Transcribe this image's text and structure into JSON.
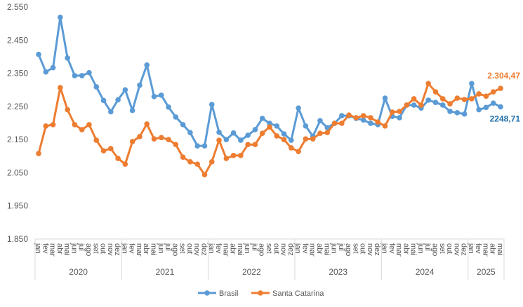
{
  "chart_data": {
    "type": "line",
    "title": "",
    "xlabel": "",
    "ylabel": "",
    "ylim": [
      1850,
      2550
    ],
    "yticks": [
      "1.850",
      "1.950",
      "2.050",
      "2.150",
      "2.250",
      "2.350",
      "2.450",
      "2.550"
    ],
    "ytick_values": [
      1850,
      1950,
      2050,
      2150,
      2250,
      2350,
      2450,
      2550
    ],
    "grid": false,
    "legend_position": "bottom",
    "months": [
      "jan",
      "fev",
      "mar",
      "abr",
      "mai",
      "jun",
      "jul",
      "ago",
      "set",
      "out",
      "nov",
      "dez"
    ],
    "years": [
      {
        "label": "2020",
        "months": 12
      },
      {
        "label": "2021",
        "months": 12
      },
      {
        "label": "2022",
        "months": 12
      },
      {
        "label": "2023",
        "months": 12
      },
      {
        "label": "2024",
        "months": 12
      },
      {
        "label": "2025",
        "months": 5
      }
    ],
    "series": [
      {
        "name": "Brasil",
        "color": "#5b9bd5",
        "end_label": "2248,71",
        "end_label_color": "#1f6ea8",
        "values": [
          2407,
          2354,
          2367,
          2519,
          2396,
          2343,
          2343,
          2352,
          2309,
          2268,
          2234,
          2270,
          2300,
          2238,
          2314,
          2375,
          2280,
          2284,
          2248,
          2218,
          2195,
          2171,
          2131,
          2131,
          2256,
          2172,
          2150,
          2170,
          2148,
          2163,
          2180,
          2214,
          2199,
          2191,
          2167,
          2148,
          2245,
          2191,
          2160,
          2207,
          2186,
          2199,
          2222,
          2222,
          2214,
          2209,
          2199,
          2195,
          2275,
          2220,
          2216,
          2254,
          2254,
          2245,
          2269,
          2262,
          2254,
          2235,
          2231,
          2227,
          2319,
          2240,
          2247,
          2260,
          2248.71
        ]
      },
      {
        "name": "Santa Catarina",
        "color": "#ed7d31",
        "end_label": "2.304,47",
        "end_label_color": "#ed7d31",
        "values": [
          2108,
          2191,
          2195,
          2307,
          2240,
          2195,
          2180,
          2195,
          2148,
          2116,
          2123,
          2093,
          2076,
          2144,
          2159,
          2197,
          2152,
          2156,
          2150,
          2135,
          2097,
          2083,
          2076,
          2044,
          2083,
          2148,
          2093,
          2102,
          2102,
          2135,
          2135,
          2169,
          2188,
          2161,
          2150,
          2125,
          2114,
          2152,
          2152,
          2169,
          2171,
          2199,
          2199,
          2224,
          2216,
          2222,
          2216,
          2203,
          2191,
          2233,
          2235,
          2254,
          2273,
          2254,
          2319,
          2294,
          2273,
          2258,
          2275,
          2271,
          2273,
          2288,
          2281,
          2294,
          2304.47
        ]
      }
    ]
  }
}
